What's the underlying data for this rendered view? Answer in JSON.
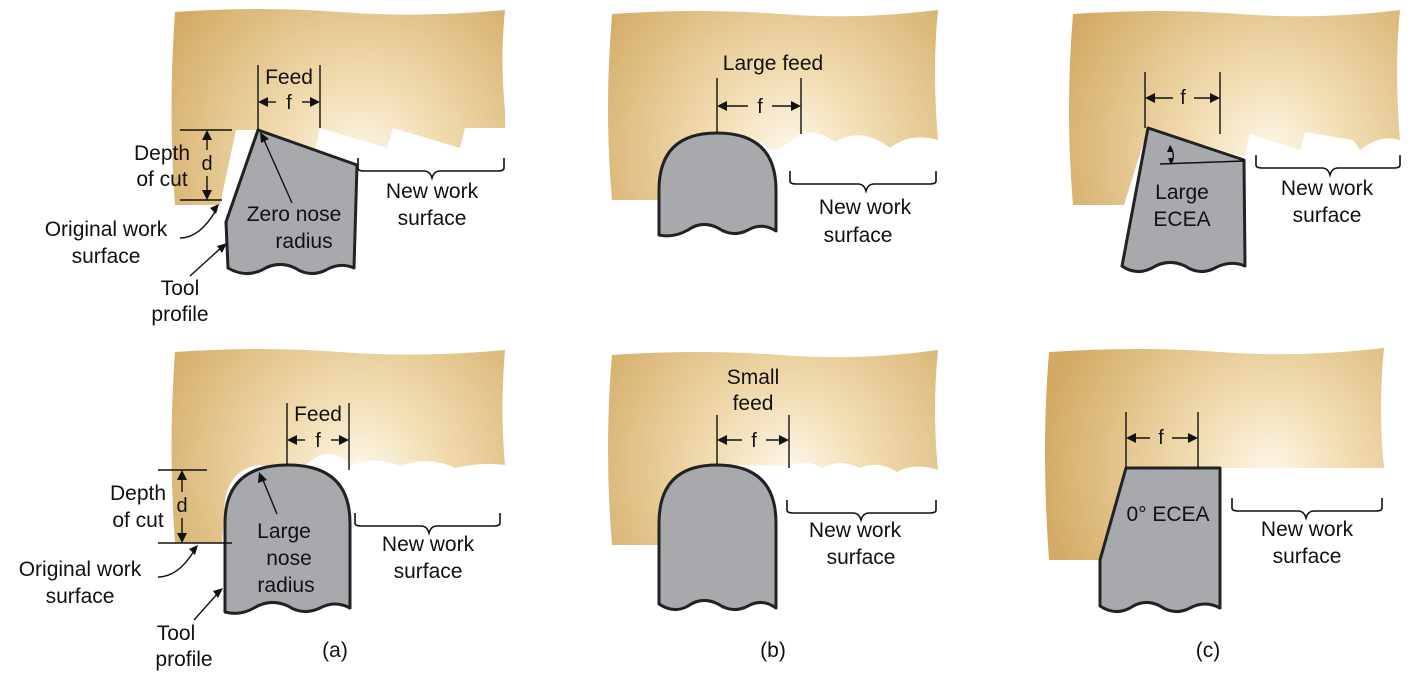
{
  "colors": {
    "workpiece_dark": "#d3aa64",
    "workpiece_light": "#fdf6e8",
    "tool_fill": "#a7a9ac",
    "tool_outline": "#222222"
  },
  "column_a": {
    "caption": "(a)",
    "top": {
      "feed_label": "Feed",
      "f_label": "f",
      "d_label": "d",
      "depth_label": [
        "Depth",
        "of cut"
      ],
      "original_label": [
        "Original work",
        "surface"
      ],
      "tool_label": [
        "Tool",
        "profile"
      ],
      "nose_label": [
        "Zero nose",
        "radius"
      ],
      "new_surface_label": [
        "New work",
        "surface"
      ]
    },
    "bottom": {
      "feed_label": "Feed",
      "f_label": "f",
      "d_label": "d",
      "depth_label": [
        "Depth",
        "of cut"
      ],
      "original_label": [
        "Original work",
        "surface"
      ],
      "tool_label": [
        "Tool",
        "profile"
      ],
      "nose_label": [
        "Large",
        "nose",
        "radius"
      ],
      "new_surface_label": [
        "New work",
        "surface"
      ]
    }
  },
  "column_b": {
    "caption": "(b)",
    "top": {
      "feed_label": [
        "Large feed"
      ],
      "f_label": "f",
      "new_surface_label": [
        "New work",
        "surface"
      ]
    },
    "bottom": {
      "feed_label": [
        "Small",
        "feed"
      ],
      "f_label": "f",
      "new_surface_label": [
        "New work",
        "surface"
      ]
    }
  },
  "column_c": {
    "caption": "(c)",
    "top": {
      "f_label": "f",
      "ecea_label": [
        "Large",
        "ECEA"
      ],
      "new_surface_label": [
        "New work",
        "surface"
      ]
    },
    "bottom": {
      "f_label": "f",
      "ecea_label": [
        "0° ECEA"
      ],
      "new_surface_label": [
        "New work",
        "surface"
      ]
    }
  }
}
